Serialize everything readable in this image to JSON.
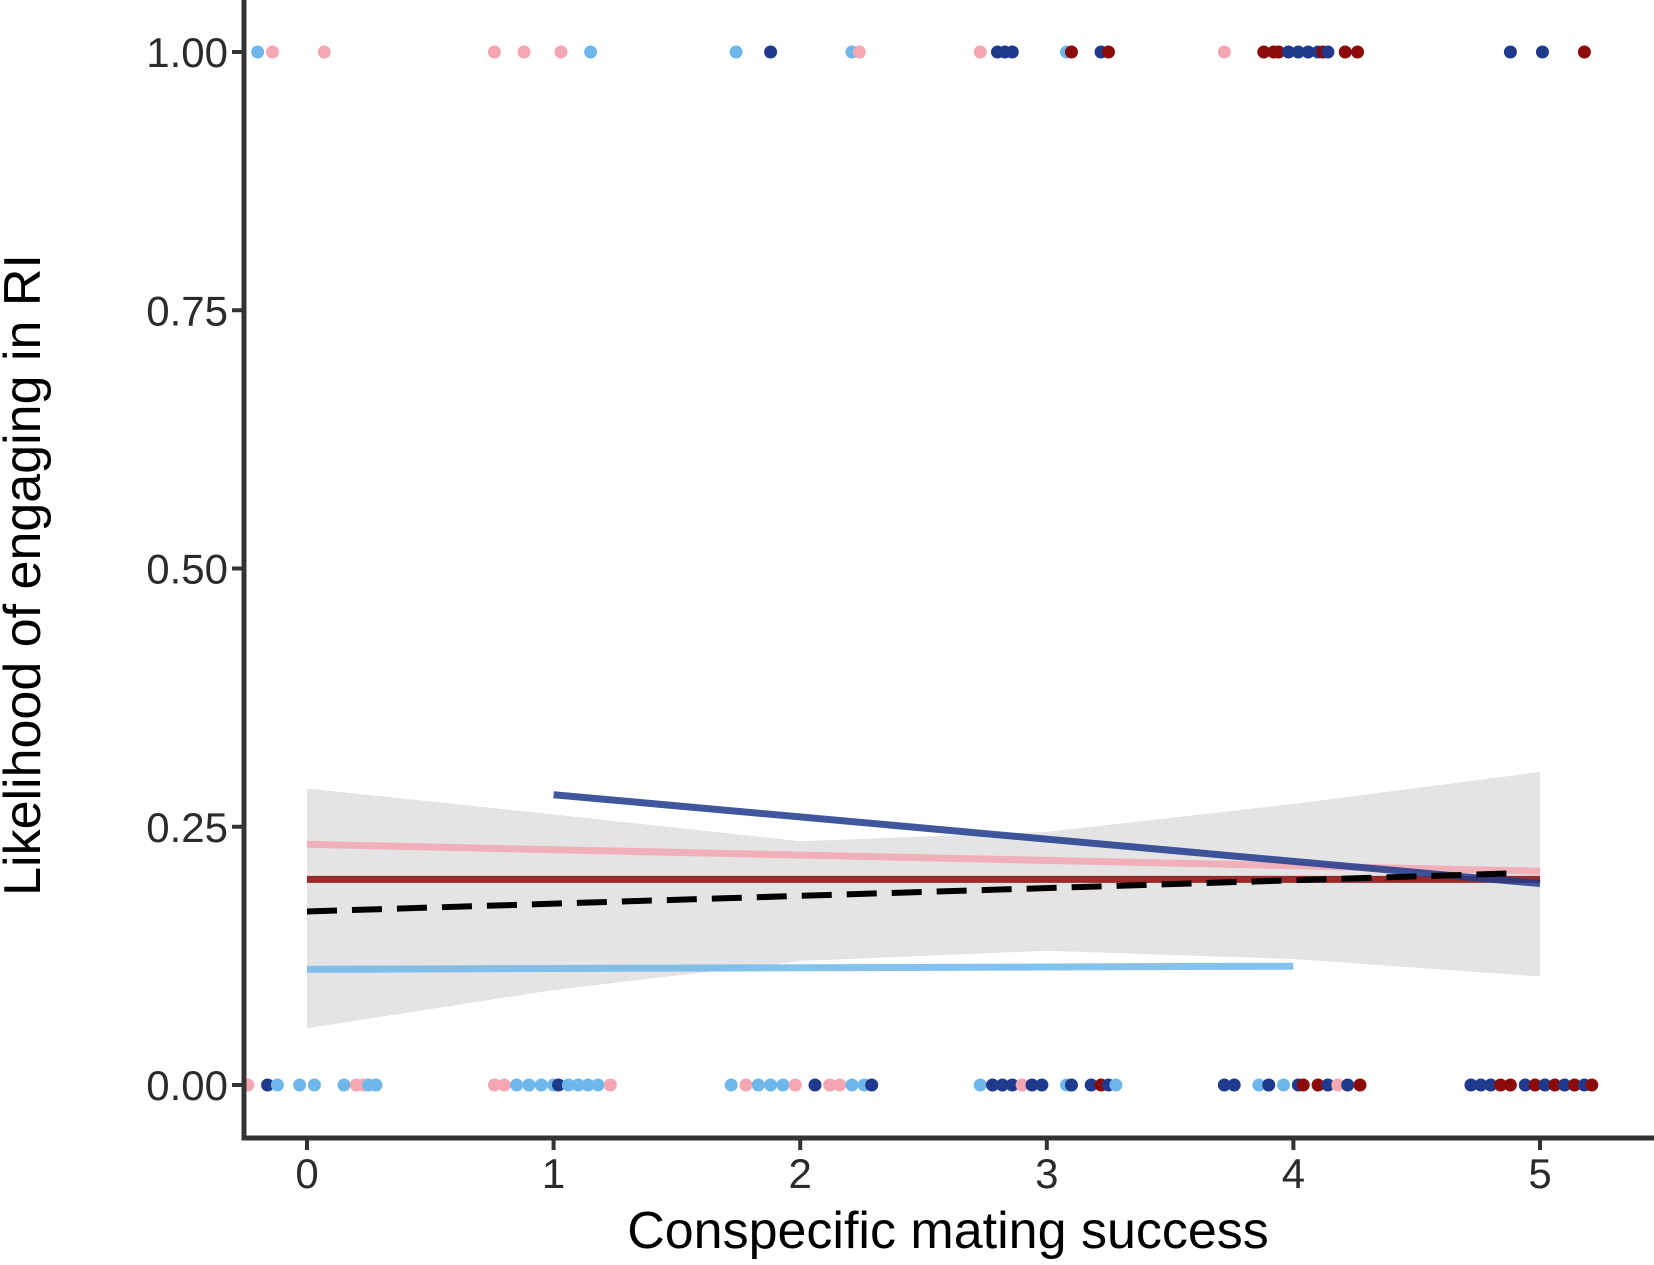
{
  "chart_data": {
    "type": "scatter",
    "xlabel": "Conspecific mating success",
    "ylabel": "Likelihood of engaging in RI",
    "xlim": [
      -0.27,
      5.45
    ],
    "ylim": [
      -0.05,
      1.05
    ],
    "x_ticks": [
      0,
      1,
      2,
      3,
      4,
      5
    ],
    "x_tick_labels": [
      "0",
      "1",
      "2",
      "3",
      "4",
      "5"
    ],
    "y_ticks": [
      0,
      0.25,
      0.5,
      0.75,
      1.0
    ],
    "y_tick_labels": [
      "0.00",
      "0.25",
      "0.50",
      "0.75",
      "1.00"
    ],
    "grid": false,
    "legend": "none",
    "colors": {
      "pink": "#f4a6b3",
      "light_blue": "#6fb7ea",
      "dark_blue": "#1f3a8c",
      "dark_red": "#8b0a0a",
      "band": "#e4e4e4",
      "overall_line": "#000000",
      "axis": "#333333"
    },
    "confidence_band": {
      "x": [
        0,
        1,
        2,
        3,
        4,
        5
      ],
      "lower": [
        0.055,
        0.092,
        0.12,
        0.13,
        0.122,
        0.105
      ],
      "upper": [
        0.287,
        0.262,
        0.236,
        0.245,
        0.272,
        0.303
      ]
    },
    "series": [
      {
        "color": "pink",
        "style": "line",
        "x": [
          0,
          5
        ],
        "y": [
          0.233,
          0.207
        ]
      },
      {
        "color": "dark_red",
        "style": "line",
        "x": [
          0,
          5
        ],
        "y": [
          0.199,
          0.199
        ]
      },
      {
        "color": "light_blue",
        "style": "line",
        "x": [
          0,
          4
        ],
        "y": [
          0.112,
          0.115
        ]
      },
      {
        "color": "dark_blue",
        "style": "line",
        "x": [
          1,
          5
        ],
        "y": [
          0.281,
          0.195
        ]
      },
      {
        "color": "overall_line",
        "style": "dashed",
        "x": [
          0,
          4.9
        ],
        "y": [
          0.168,
          0.205
        ]
      }
    ],
    "points_y1": [
      {
        "x": -0.2,
        "color": "light_blue"
      },
      {
        "x": -0.14,
        "color": "pink"
      },
      {
        "x": 0.07,
        "color": "pink"
      },
      {
        "x": 0.76,
        "color": "pink"
      },
      {
        "x": 0.88,
        "color": "pink"
      },
      {
        "x": 1.03,
        "color": "pink"
      },
      {
        "x": 1.15,
        "color": "light_blue"
      },
      {
        "x": 1.74,
        "color": "light_blue"
      },
      {
        "x": 1.88,
        "color": "dark_blue"
      },
      {
        "x": 2.21,
        "color": "light_blue"
      },
      {
        "x": 2.24,
        "color": "pink"
      },
      {
        "x": 2.73,
        "color": "pink"
      },
      {
        "x": 2.8,
        "color": "dark_blue"
      },
      {
        "x": 2.83,
        "color": "dark_blue"
      },
      {
        "x": 2.86,
        "color": "dark_blue"
      },
      {
        "x": 3.08,
        "color": "light_blue"
      },
      {
        "x": 3.1,
        "color": "dark_red"
      },
      {
        "x": 3.22,
        "color": "dark_blue"
      },
      {
        "x": 3.25,
        "color": "dark_red"
      },
      {
        "x": 3.72,
        "color": "pink"
      },
      {
        "x": 3.88,
        "color": "dark_red"
      },
      {
        "x": 3.92,
        "color": "dark_red"
      },
      {
        "x": 3.94,
        "color": "dark_red"
      },
      {
        "x": 3.98,
        "color": "dark_blue"
      },
      {
        "x": 4.02,
        "color": "dark_blue"
      },
      {
        "x": 4.06,
        "color": "dark_blue"
      },
      {
        "x": 4.1,
        "color": "dark_blue"
      },
      {
        "x": 4.12,
        "color": "dark_red"
      },
      {
        "x": 4.14,
        "color": "dark_blue"
      },
      {
        "x": 4.21,
        "color": "dark_red"
      },
      {
        "x": 4.26,
        "color": "dark_red"
      },
      {
        "x": 4.88,
        "color": "dark_blue"
      },
      {
        "x": 5.01,
        "color": "dark_blue"
      },
      {
        "x": 5.18,
        "color": "dark_red"
      }
    ],
    "points_y0": [
      {
        "x": -0.24,
        "color": "pink"
      },
      {
        "x": -0.16,
        "color": "dark_blue"
      },
      {
        "x": -0.12,
        "color": "light_blue"
      },
      {
        "x": -0.03,
        "color": "light_blue"
      },
      {
        "x": 0.03,
        "color": "light_blue"
      },
      {
        "x": 0.15,
        "color": "light_blue"
      },
      {
        "x": 0.2,
        "color": "pink"
      },
      {
        "x": 0.23,
        "color": "pink"
      },
      {
        "x": 0.25,
        "color": "light_blue"
      },
      {
        "x": 0.28,
        "color": "light_blue"
      },
      {
        "x": 0.76,
        "color": "pink"
      },
      {
        "x": 0.8,
        "color": "pink"
      },
      {
        "x": 0.85,
        "color": "light_blue"
      },
      {
        "x": 0.9,
        "color": "light_blue"
      },
      {
        "x": 0.95,
        "color": "light_blue"
      },
      {
        "x": 1.0,
        "color": "light_blue"
      },
      {
        "x": 1.02,
        "color": "dark_blue"
      },
      {
        "x": 1.06,
        "color": "light_blue"
      },
      {
        "x": 1.1,
        "color": "light_blue"
      },
      {
        "x": 1.14,
        "color": "light_blue"
      },
      {
        "x": 1.18,
        "color": "light_blue"
      },
      {
        "x": 1.23,
        "color": "pink"
      },
      {
        "x": 1.72,
        "color": "light_blue"
      },
      {
        "x": 1.78,
        "color": "pink"
      },
      {
        "x": 1.83,
        "color": "light_blue"
      },
      {
        "x": 1.88,
        "color": "light_blue"
      },
      {
        "x": 1.93,
        "color": "light_blue"
      },
      {
        "x": 1.98,
        "color": "pink"
      },
      {
        "x": 2.06,
        "color": "dark_blue"
      },
      {
        "x": 2.12,
        "color": "pink"
      },
      {
        "x": 2.16,
        "color": "pink"
      },
      {
        "x": 2.21,
        "color": "light_blue"
      },
      {
        "x": 2.26,
        "color": "light_blue"
      },
      {
        "x": 2.29,
        "color": "dark_blue"
      },
      {
        "x": 2.73,
        "color": "light_blue"
      },
      {
        "x": 2.78,
        "color": "dark_blue"
      },
      {
        "x": 2.82,
        "color": "dark_blue"
      },
      {
        "x": 2.86,
        "color": "dark_blue"
      },
      {
        "x": 2.9,
        "color": "pink"
      },
      {
        "x": 2.94,
        "color": "dark_blue"
      },
      {
        "x": 2.98,
        "color": "dark_blue"
      },
      {
        "x": 3.08,
        "color": "light_blue"
      },
      {
        "x": 3.1,
        "color": "dark_blue"
      },
      {
        "x": 3.18,
        "color": "dark_blue"
      },
      {
        "x": 3.22,
        "color": "dark_red"
      },
      {
        "x": 3.25,
        "color": "dark_blue"
      },
      {
        "x": 3.28,
        "color": "light_blue"
      },
      {
        "x": 3.72,
        "color": "dark_blue"
      },
      {
        "x": 3.76,
        "color": "dark_blue"
      },
      {
        "x": 3.86,
        "color": "light_blue"
      },
      {
        "x": 3.9,
        "color": "dark_blue"
      },
      {
        "x": 3.96,
        "color": "light_blue"
      },
      {
        "x": 4.02,
        "color": "dark_blue"
      },
      {
        "x": 4.04,
        "color": "dark_red"
      },
      {
        "x": 4.1,
        "color": "dark_red"
      },
      {
        "x": 4.14,
        "color": "dark_blue"
      },
      {
        "x": 4.18,
        "color": "pink"
      },
      {
        "x": 4.22,
        "color": "dark_blue"
      },
      {
        "x": 4.27,
        "color": "dark_red"
      },
      {
        "x": 4.72,
        "color": "dark_blue"
      },
      {
        "x": 4.76,
        "color": "dark_blue"
      },
      {
        "x": 4.8,
        "color": "dark_blue"
      },
      {
        "x": 4.84,
        "color": "dark_red"
      },
      {
        "x": 4.88,
        "color": "dark_red"
      },
      {
        "x": 4.94,
        "color": "dark_blue"
      },
      {
        "x": 4.98,
        "color": "dark_red"
      },
      {
        "x": 5.02,
        "color": "dark_blue"
      },
      {
        "x": 5.06,
        "color": "dark_red"
      },
      {
        "x": 5.1,
        "color": "dark_blue"
      },
      {
        "x": 5.14,
        "color": "dark_red"
      },
      {
        "x": 5.18,
        "color": "dark_blue"
      },
      {
        "x": 5.21,
        "color": "dark_red"
      }
    ]
  }
}
